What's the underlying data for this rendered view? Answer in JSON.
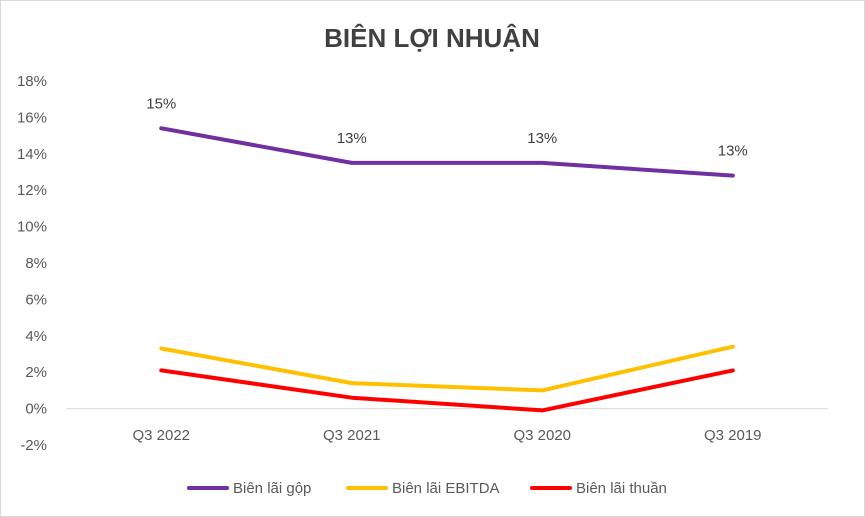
{
  "chart_data": {
    "type": "line",
    "title": "BIÊN LỢI NHUẬN",
    "categories": [
      "Q3 2022",
      "Q3 2021",
      "Q3 2020",
      "Q3 2019"
    ],
    "ylim": [
      -0.02,
      0.18
    ],
    "yticks": [
      -0.02,
      0,
      0.02,
      0.04,
      0.06,
      0.08,
      0.1,
      0.12,
      0.14,
      0.16,
      0.18
    ],
    "ytick_labels": [
      "-2%",
      "0%",
      "2%",
      "4%",
      "6%",
      "8%",
      "10%",
      "12%",
      "14%",
      "16%",
      "18%"
    ],
    "grid": false,
    "legend": "bottom",
    "series": [
      {
        "name": "Biên lãi gộp",
        "color": "#7030a0",
        "values": [
          0.154,
          0.135,
          0.135,
          0.128
        ],
        "labels": [
          "15%",
          "13%",
          "13%",
          "13%"
        ]
      },
      {
        "name": "Biên lãi EBITDA",
        "color": "#ffc000",
        "values": [
          0.033,
          0.014,
          0.01,
          0.034
        ]
      },
      {
        "name": "Biên lãi thuần",
        "color": "#ff0000",
        "values": [
          0.021,
          0.006,
          -0.001,
          0.021
        ]
      }
    ]
  }
}
